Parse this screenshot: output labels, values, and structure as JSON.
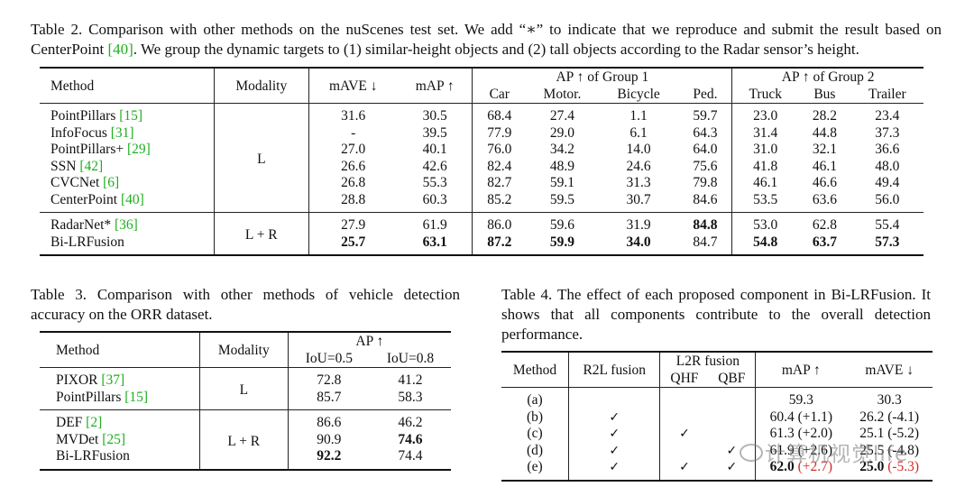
{
  "table2": {
    "caption_a": "Table 2. Comparison with other methods on the nuScenes test set. We add “∗” to indicate that we reproduce and submit the result based on CenterPoint ",
    "caption_cite": "[40]",
    "caption_b": ". We group the dynamic targets to (1) similar-height objects and (2) tall objects according to the Radar sensor’s height.",
    "headers": {
      "method": "Method",
      "modality": "Modality",
      "mave": "mAVE ↓",
      "map": "mAP ↑",
      "group1": "AP ↑ of Group 1",
      "group2": "AP ↑ of Group 2",
      "car": "Car",
      "motor": "Motor.",
      "bicycle": "Bicycle",
      "ped": "Ped.",
      "truck": "Truck",
      "bus": "Bus",
      "trailer": "Trailer"
    },
    "lidar_modality": "L",
    "fusion_modality": "L + R",
    "rows": [
      {
        "name": "PointPillars ",
        "cite": "[15]",
        "mave": "31.6",
        "map": "30.5",
        "car": "68.4",
        "motor": "27.4",
        "bicycle": "1.1",
        "ped": "59.7",
        "truck": "23.0",
        "bus": "28.2",
        "trailer": "23.4"
      },
      {
        "name": "InfoFocus ",
        "cite": "[31]",
        "mave": "-",
        "map": "39.5",
        "car": "77.9",
        "motor": "29.0",
        "bicycle": "6.1",
        "ped": "64.3",
        "truck": "31.4",
        "bus": "44.8",
        "trailer": "37.3"
      },
      {
        "name": "PointPillars+ ",
        "cite": "[29]",
        "mave": "27.0",
        "map": "40.1",
        "car": "76.0",
        "motor": "34.2",
        "bicycle": "14.0",
        "ped": "64.0",
        "truck": "31.0",
        "bus": "32.1",
        "trailer": "36.6"
      },
      {
        "name": "SSN ",
        "cite": "[42]",
        "mave": "26.6",
        "map": "42.6",
        "car": "82.4",
        "motor": "48.9",
        "bicycle": "24.6",
        "ped": "75.6",
        "truck": "41.8",
        "bus": "46.1",
        "trailer": "48.0"
      },
      {
        "name": "CVCNet ",
        "cite": "[6]",
        "mave": "26.8",
        "map": "55.3",
        "car": "82.7",
        "motor": "59.1",
        "bicycle": "31.3",
        "ped": "79.8",
        "truck": "46.1",
        "bus": "46.6",
        "trailer": "49.4"
      },
      {
        "name": "CenterPoint ",
        "cite": "[40]",
        "mave": "28.8",
        "map": "60.3",
        "car": "85.2",
        "motor": "59.5",
        "bicycle": "30.7",
        "ped": "84.6",
        "truck": "53.5",
        "bus": "63.6",
        "trailer": "56.0"
      }
    ],
    "fusion_rows": [
      {
        "name": "RadarNet* ",
        "cite": "[36]",
        "mave": "27.9",
        "map": "61.9",
        "car": "86.0",
        "motor": "59.6",
        "bicycle": "31.9",
        "ped": "84.8",
        "truck": "53.0",
        "bus": "62.8",
        "trailer": "55.4"
      },
      {
        "name": "Bi-LRFusion",
        "cite": "",
        "mave": "25.7",
        "map": "63.1",
        "car": "87.2",
        "motor": "59.9",
        "bicycle": "34.0",
        "ped": "84.7",
        "truck": "54.8",
        "bus": "63.7",
        "trailer": "57.3"
      }
    ]
  },
  "table3": {
    "caption": "Table 3. Comparison with other methods of vehicle detection accuracy on the ORR dataset.",
    "headers": {
      "method": "Method",
      "modality": "Modality",
      "ap": "AP ↑",
      "iou05": "IoU=0.5",
      "iou08": "IoU=0.8"
    },
    "lidar_modality": "L",
    "fusion_modality": "L + R",
    "rows": [
      {
        "name": "PIXOR ",
        "cite": "[37]",
        "iou05": "72.8",
        "iou08": "41.2"
      },
      {
        "name": "PointPillars ",
        "cite": "[15]",
        "iou05": "85.7",
        "iou08": "58.3"
      }
    ],
    "fusion_rows": [
      {
        "name": "DEF ",
        "cite": "[2]",
        "iou05": "86.6",
        "iou08": "46.2"
      },
      {
        "name": "MVDet ",
        "cite": "[25]",
        "iou05": "90.9",
        "iou08": "74.6"
      },
      {
        "name": "Bi-LRFusion",
        "cite": "",
        "iou05": "92.2",
        "iou08": "74.4"
      }
    ]
  },
  "table4": {
    "caption": "Table 4. The effect of each proposed component in Bi-LRFusion. It shows that all components contribute to the overall detection performance.",
    "headers": {
      "method": "Method",
      "r2l": "R2L fusion",
      "l2r": "L2R fusion",
      "qhf": "QHF",
      "qbf": "QBF",
      "map": "mAP ↑",
      "mave": "mAVE ↓"
    },
    "check": "✓",
    "rows": [
      {
        "id": "(a)",
        "map": "59.3",
        "map_delta": "",
        "mave": "30.3",
        "mave_delta": ""
      },
      {
        "id": "(b)",
        "map": "60.4",
        "map_delta": " (+1.1)",
        "mave": "26.2",
        "mave_delta": " (-4.1)"
      },
      {
        "id": "(c)",
        "map": "61.3",
        "map_delta": " (+2.0)",
        "mave": "25.1",
        "mave_delta": " (-5.2)"
      },
      {
        "id": "(d)",
        "map": "61.9",
        "map_delta": " (+2.6)",
        "mave": "25.5",
        "mave_delta": " (-4.8)"
      },
      {
        "id": "(e)",
        "map": "62.0",
        "map_delta": " (+2.7)",
        "mave": "25.0",
        "mave_delta": " (-5.3)"
      }
    ]
  },
  "watermark": "计算机视觉life"
}
